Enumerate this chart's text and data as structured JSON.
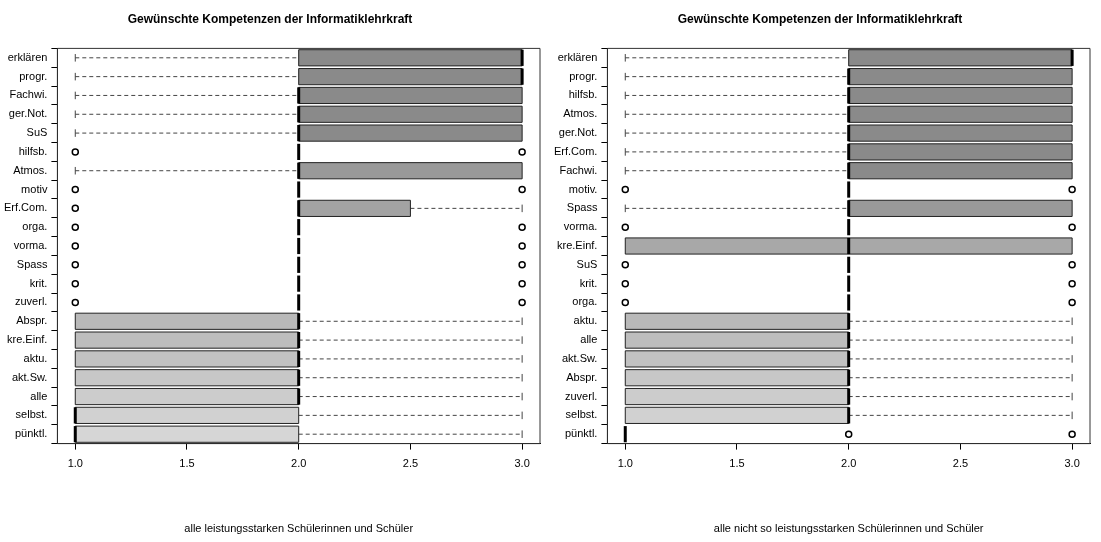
{
  "chart_data": [
    {
      "type": "box",
      "title": "Gewünschte Kompetenzen der Informatiklehrkraft",
      "xlabel": "alle leistungsstarken Schülerinnen und Schüler",
      "orientation": "horizontal",
      "categories": [
        "erklären",
        "progr.",
        "Fachwi.",
        "ger.Not.",
        "SuS",
        "hilfsb.",
        "Atmos.",
        "motiv",
        "Erf.Com.",
        "orga.",
        "vorma.",
        "Spass",
        "krit.",
        "zuverl.",
        "Abspr.",
        "kre.Einf.",
        "aktu.",
        "akt.Sw.",
        "alle",
        "selbst.",
        "pünktl."
      ],
      "colors": [
        "#8a8a8a",
        "#8a8a8a",
        "#8a8a8a",
        "#8a8a8a",
        "#8a8a8a",
        "#000000",
        "#999999",
        "#000000",
        "#a3a3a3",
        "#000000",
        "#000000",
        "#000000",
        "#000000",
        "#000000",
        "#b9b9b9",
        "#bdbdbd",
        "#c2c2c2",
        "#c7c7c7",
        "#cccccc",
        "#d1d1d1",
        "#d6d6d6"
      ],
      "boxes": [
        {
          "low": 1,
          "q1": 2,
          "median": 3,
          "q3": 3,
          "high": 3
        },
        {
          "low": 1,
          "q1": 2,
          "median": 3,
          "q3": 3,
          "high": 3
        },
        {
          "low": 1,
          "q1": 2,
          "median": 2,
          "q3": 3,
          "high": 3
        },
        {
          "low": 1,
          "q1": 2,
          "median": 2,
          "q3": 3,
          "high": 3
        },
        {
          "low": 1,
          "q1": 2,
          "median": 2,
          "q3": 3,
          "high": 3
        },
        {
          "low": 2,
          "q1": 2,
          "median": 2,
          "q3": 2,
          "high": 2,
          "outliers": [
            1,
            3
          ]
        },
        {
          "low": 1,
          "q1": 2,
          "median": 2,
          "q3": 3,
          "high": 3
        },
        {
          "low": 2,
          "q1": 2,
          "median": 2,
          "q3": 2,
          "high": 2,
          "outliers": [
            1,
            3
          ]
        },
        {
          "low": 2,
          "q1": 2,
          "median": 2,
          "q3": 2.5,
          "high": 3,
          "outliers": [
            1
          ]
        },
        {
          "low": 2,
          "q1": 2,
          "median": 2,
          "q3": 2,
          "high": 2,
          "outliers": [
            1,
            3
          ]
        },
        {
          "low": 2,
          "q1": 2,
          "median": 2,
          "q3": 2,
          "high": 2,
          "outliers": [
            1,
            3
          ]
        },
        {
          "low": 2,
          "q1": 2,
          "median": 2,
          "q3": 2,
          "high": 2,
          "outliers": [
            1,
            3
          ]
        },
        {
          "low": 2,
          "q1": 2,
          "median": 2,
          "q3": 2,
          "high": 2,
          "outliers": [
            1,
            3
          ]
        },
        {
          "low": 2,
          "q1": 2,
          "median": 2,
          "q3": 2,
          "high": 2,
          "outliers": [
            1,
            3
          ]
        },
        {
          "low": 1,
          "q1": 1,
          "median": 2,
          "q3": 2,
          "high": 3
        },
        {
          "low": 1,
          "q1": 1,
          "median": 2,
          "q3": 2,
          "high": 3
        },
        {
          "low": 1,
          "q1": 1,
          "median": 2,
          "q3": 2,
          "high": 3
        },
        {
          "low": 1,
          "q1": 1,
          "median": 2,
          "q3": 2,
          "high": 3
        },
        {
          "low": 1,
          "q1": 1,
          "median": 2,
          "q3": 2,
          "high": 3
        },
        {
          "low": 1,
          "q1": 1,
          "median": 1,
          "q3": 2,
          "high": 3
        },
        {
          "low": 1,
          "q1": 1,
          "median": 1,
          "q3": 2,
          "high": 3
        }
      ],
      "xlim": [
        0.92,
        3.08
      ],
      "xticks": [
        {
          "value": 1,
          "label": "1.0"
        },
        {
          "value": 1.5,
          "label": "1.5"
        },
        {
          "value": 2,
          "label": "2.0"
        },
        {
          "value": 2.5,
          "label": "2.5"
        },
        {
          "value": 3,
          "label": "3.0"
        }
      ]
    },
    {
      "type": "box",
      "title": "Gewünschte Kompetenzen der Informatiklehrkraft",
      "xlabel": "alle nicht so leistungsstarken Schülerinnen und Schüler",
      "orientation": "horizontal",
      "categories": [
        "erklären",
        "progr.",
        "hilfsb.",
        "Atmos.",
        "ger.Not.",
        "Erf.Com.",
        "Fachwi.",
        "motiv.",
        "Spass",
        "vorma.",
        "kre.Einf.",
        "SuS",
        "krit.",
        "orga.",
        "aktu.",
        "alle",
        "akt.Sw.",
        "Abspr.",
        "zuverl.",
        "selbst.",
        "pünktl."
      ],
      "colors": [
        "#8a8a8a",
        "#8a8a8a",
        "#8a8a8a",
        "#8a8a8a",
        "#8a8a8a",
        "#8a8a8a",
        "#8a8a8a",
        "#000000",
        "#999999",
        "#000000",
        "#a8a8a8",
        "#000000",
        "#000000",
        "#000000",
        "#b9b9b9",
        "#bdbdbd",
        "#c2c2c2",
        "#c7c7c7",
        "#cccccc",
        "#d1d1d1",
        "#000000"
      ],
      "boxes": [
        {
          "low": 1,
          "q1": 2,
          "median": 3,
          "q3": 3,
          "high": 3
        },
        {
          "low": 1,
          "q1": 2,
          "median": 2,
          "q3": 3,
          "high": 3
        },
        {
          "low": 1,
          "q1": 2,
          "median": 2,
          "q3": 3,
          "high": 3
        },
        {
          "low": 1,
          "q1": 2,
          "median": 2,
          "q3": 3,
          "high": 3
        },
        {
          "low": 1,
          "q1": 2,
          "median": 2,
          "q3": 3,
          "high": 3
        },
        {
          "low": 1,
          "q1": 2,
          "median": 2,
          "q3": 3,
          "high": 3
        },
        {
          "low": 1,
          "q1": 2,
          "median": 2,
          "q3": 3,
          "high": 3
        },
        {
          "low": 2,
          "q1": 2,
          "median": 2,
          "q3": 2,
          "high": 2,
          "outliers": [
            1,
            3
          ]
        },
        {
          "low": 1,
          "q1": 2,
          "median": 2,
          "q3": 3,
          "high": 3
        },
        {
          "low": 2,
          "q1": 2,
          "median": 2,
          "q3": 2,
          "high": 2,
          "outliers": [
            1,
            3
          ]
        },
        {
          "low": 1,
          "q1": 1,
          "median": 2,
          "q3": 3,
          "high": 3
        },
        {
          "low": 2,
          "q1": 2,
          "median": 2,
          "q3": 2,
          "high": 2,
          "outliers": [
            1,
            3
          ]
        },
        {
          "low": 2,
          "q1": 2,
          "median": 2,
          "q3": 2,
          "high": 2,
          "outliers": [
            1,
            3
          ]
        },
        {
          "low": 2,
          "q1": 2,
          "median": 2,
          "q3": 2,
          "high": 2,
          "outliers": [
            1,
            3
          ]
        },
        {
          "low": 1,
          "q1": 1,
          "median": 2,
          "q3": 2,
          "high": 3
        },
        {
          "low": 1,
          "q1": 1,
          "median": 2,
          "q3": 2,
          "high": 3
        },
        {
          "low": 1,
          "q1": 1,
          "median": 2,
          "q3": 2,
          "high": 3
        },
        {
          "low": 1,
          "q1": 1,
          "median": 2,
          "q3": 2,
          "high": 3
        },
        {
          "low": 1,
          "q1": 1,
          "median": 2,
          "q3": 2,
          "high": 3
        },
        {
          "low": 1,
          "q1": 1,
          "median": 2,
          "q3": 2,
          "high": 3
        },
        {
          "low": 1,
          "q1": 1,
          "median": 1,
          "q3": 1,
          "high": 1,
          "outliers": [
            2,
            3
          ]
        }
      ],
      "xlim": [
        0.92,
        3.08
      ],
      "xticks": [
        {
          "value": 1,
          "label": "1.0"
        },
        {
          "value": 1.5,
          "label": "1.5"
        },
        {
          "value": 2,
          "label": "2.0"
        },
        {
          "value": 2.5,
          "label": "2.5"
        },
        {
          "value": 3,
          "label": "3.0"
        }
      ]
    }
  ]
}
